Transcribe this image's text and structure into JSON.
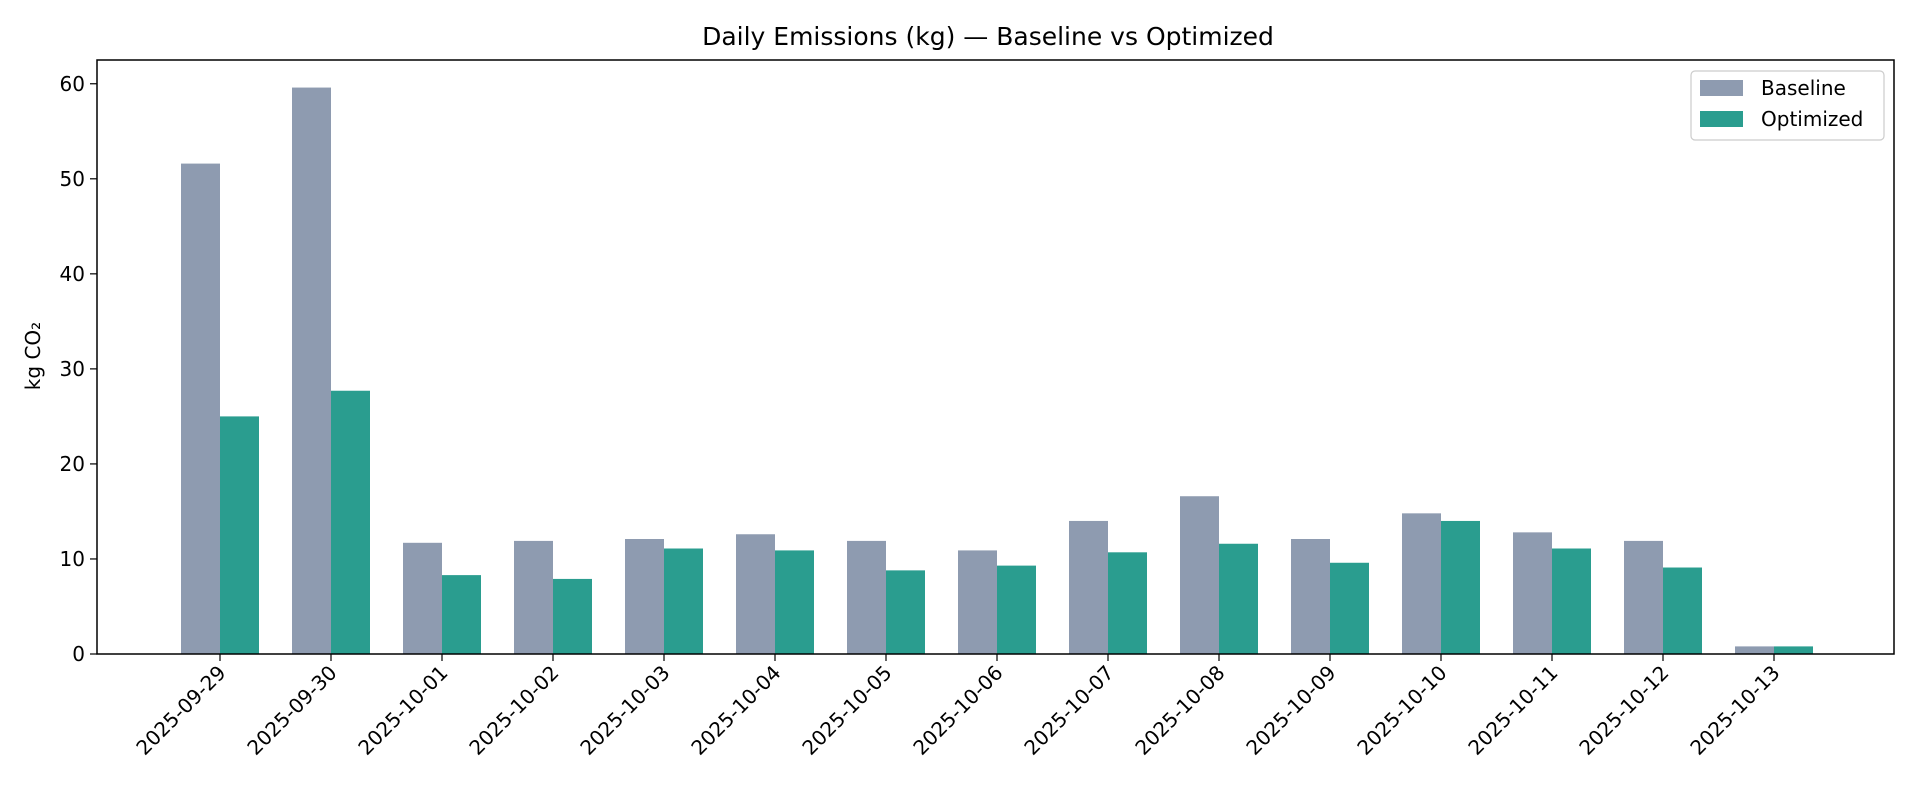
{
  "chart_data": {
    "type": "bar",
    "title": "Daily Emissions (kg) — Baseline vs Optimized",
    "xlabel": "",
    "ylabel": "kg CO₂",
    "ylim": [
      0,
      62.5
    ],
    "yticks": [
      0,
      10,
      20,
      30,
      40,
      50,
      60
    ],
    "categories": [
      "2025-09-29",
      "2025-09-30",
      "2025-10-01",
      "2025-10-02",
      "2025-10-03",
      "2025-10-04",
      "2025-10-05",
      "2025-10-06",
      "2025-10-07",
      "2025-10-08",
      "2025-10-09",
      "2025-10-10",
      "2025-10-11",
      "2025-10-12",
      "2025-10-13"
    ],
    "series": [
      {
        "name": "Baseline",
        "color": "#8e9bb0",
        "values": [
          51.6,
          59.6,
          11.7,
          11.9,
          12.1,
          12.6,
          11.9,
          10.9,
          14.0,
          16.6,
          12.1,
          14.8,
          12.8,
          11.9,
          0.8
        ]
      },
      {
        "name": "Optimized",
        "color": "#2a9d8f",
        "values": [
          25.0,
          27.7,
          8.3,
          7.9,
          11.1,
          10.9,
          8.8,
          9.3,
          10.7,
          11.6,
          9.6,
          14.0,
          11.1,
          9.1,
          0.8
        ]
      }
    ],
    "legend": "top-right",
    "grid": false
  }
}
